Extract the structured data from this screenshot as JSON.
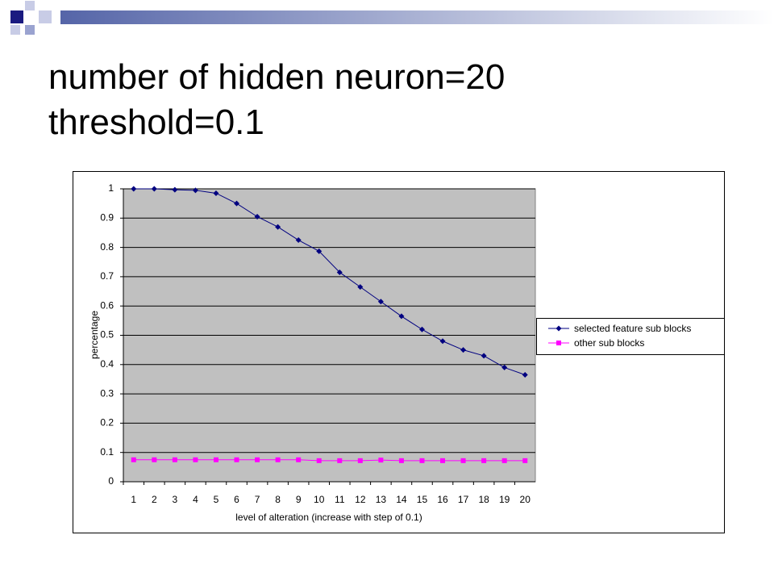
{
  "chart_data": {
    "type": "line",
    "title": "number of hidden neuron=20 threshold=0.1",
    "x_label": "level of alteration (increase with step of 0.1)",
    "y_label": "percentage",
    "categories": [
      "1",
      "2",
      "3",
      "4",
      "5",
      "6",
      "7",
      "8",
      "9",
      "10",
      "11",
      "12",
      "13",
      "14",
      "15",
      "16",
      "17",
      "18",
      "19",
      "20"
    ],
    "series": [
      {
        "name": "selected feature sub blocks",
        "color": "#000080",
        "marker": "diamond",
        "values": [
          1.0,
          1.0,
          0.997,
          0.995,
          0.985,
          0.95,
          0.905,
          0.87,
          0.825,
          0.787,
          0.715,
          0.665,
          0.615,
          0.565,
          0.52,
          0.48,
          0.45,
          0.43,
          0.39,
          0.365
        ]
      },
      {
        "name": "other sub blocks",
        "color": "#ff00ff",
        "marker": "square",
        "values": [
          0.075,
          0.075,
          0.075,
          0.075,
          0.075,
          0.075,
          0.075,
          0.075,
          0.075,
          0.072,
          0.072,
          0.072,
          0.074,
          0.072,
          0.072,
          0.072,
          0.072,
          0.072,
          0.072,
          0.072
        ]
      }
    ],
    "ylim": [
      0,
      1
    ],
    "yticks": [
      0,
      0.1,
      0.2,
      0.3,
      0.4,
      0.5,
      0.6,
      0.7,
      0.8,
      0.9,
      1
    ],
    "grid": true,
    "legend": "right"
  }
}
